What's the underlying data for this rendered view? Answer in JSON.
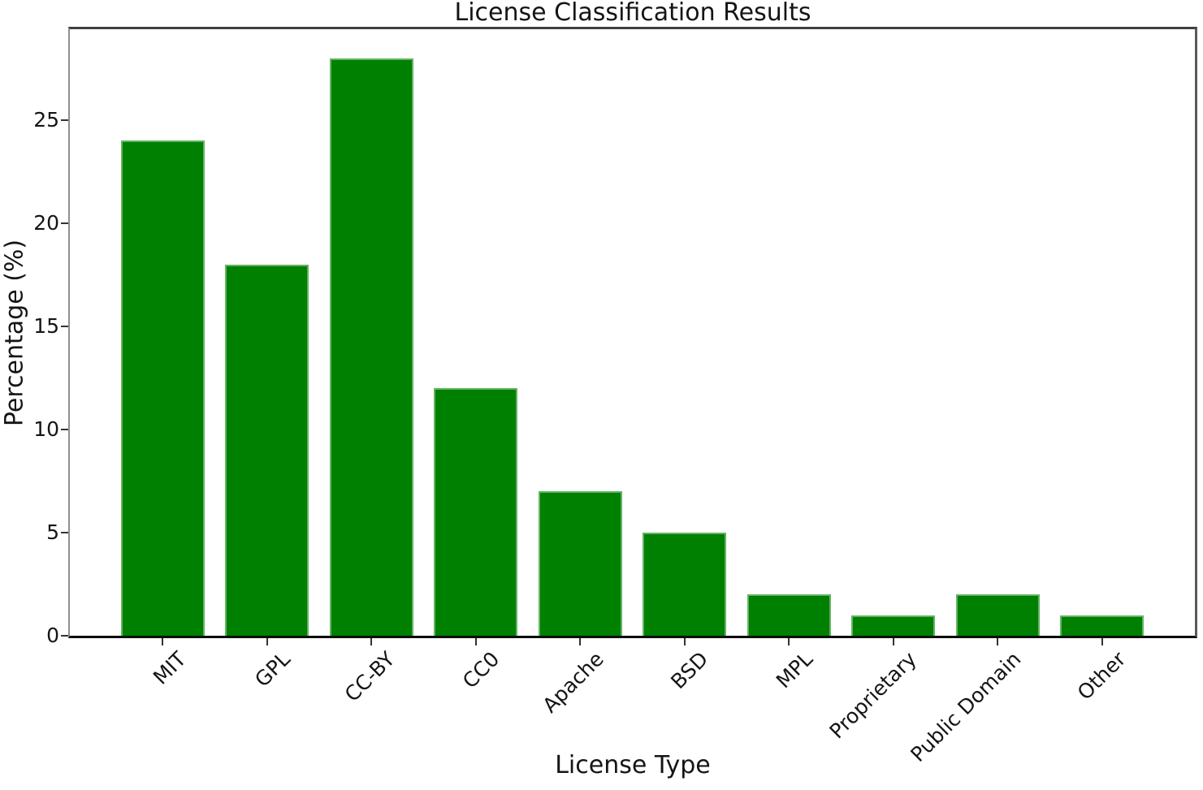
{
  "chart_data": {
    "type": "bar",
    "title": "License Classification Results",
    "xlabel": "License Type",
    "ylabel": "Percentage (%)",
    "categories": [
      "MIT",
      "GPL",
      "CC-BY",
      "CC0",
      "Apache",
      "BSD",
      "MPL",
      "Proprietary",
      "Public Domain",
      "Other"
    ],
    "values": [
      24,
      18,
      28,
      12,
      7,
      5,
      2,
      1,
      2,
      1
    ],
    "ylim": [
      0,
      29.4
    ],
    "yticks": [
      0,
      5,
      10,
      15,
      20,
      25
    ],
    "bar_color": "#008000",
    "bar_edge_color": "#63b363",
    "bar_width_fraction": 0.8,
    "x_margin_fraction": 0.05,
    "tick_label_rotation": 45,
    "grid": "off",
    "legend": "none"
  }
}
